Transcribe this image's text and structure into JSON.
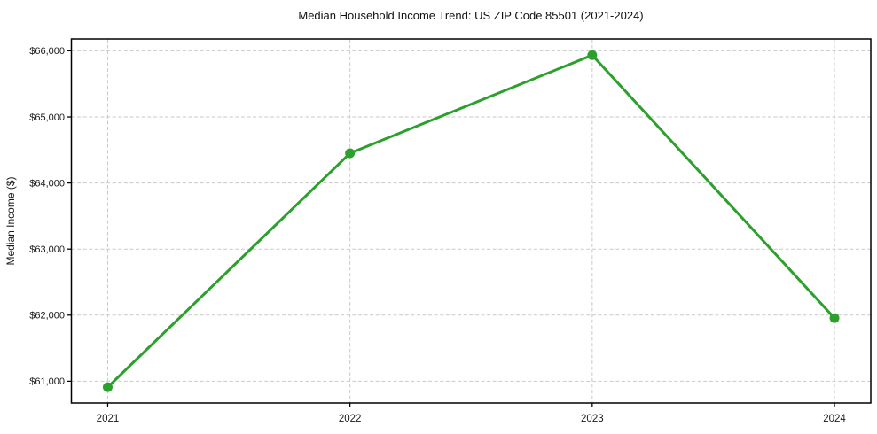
{
  "figure": {
    "title": "Median Household Income Trend: US ZIP Code 85501 (2021-2024)"
  },
  "chart_data": {
    "type": "line",
    "title": "Median Household Income Trend: US ZIP Code 85501 (2021-2024)",
    "xlabel": "",
    "ylabel": "Median Income ($)",
    "categories": [
      "2021",
      "2022",
      "2023",
      "2024"
    ],
    "values": [
      60910,
      64450,
      65935,
      61955
    ],
    "series_name": "Median Household Income",
    "yticks": [
      61000,
      62000,
      63000,
      64000,
      65000,
      66000
    ],
    "ytick_labels": [
      "$61,000",
      "$62,000",
      "$63,000",
      "$64,000",
      "$65,000",
      "$66,000"
    ],
    "ylim": [
      60670,
      66180
    ],
    "xlim": [
      -0.15,
      3.15
    ],
    "grid": true,
    "grid_style": "dashed",
    "legend": "none",
    "marker": "circle",
    "colors": {
      "line": "#2ca02c",
      "marker": "#2ca02c",
      "grid": "#c9c9c9",
      "spine": "#000000",
      "text": "#1a1a1a",
      "background": "#ffffff"
    }
  }
}
